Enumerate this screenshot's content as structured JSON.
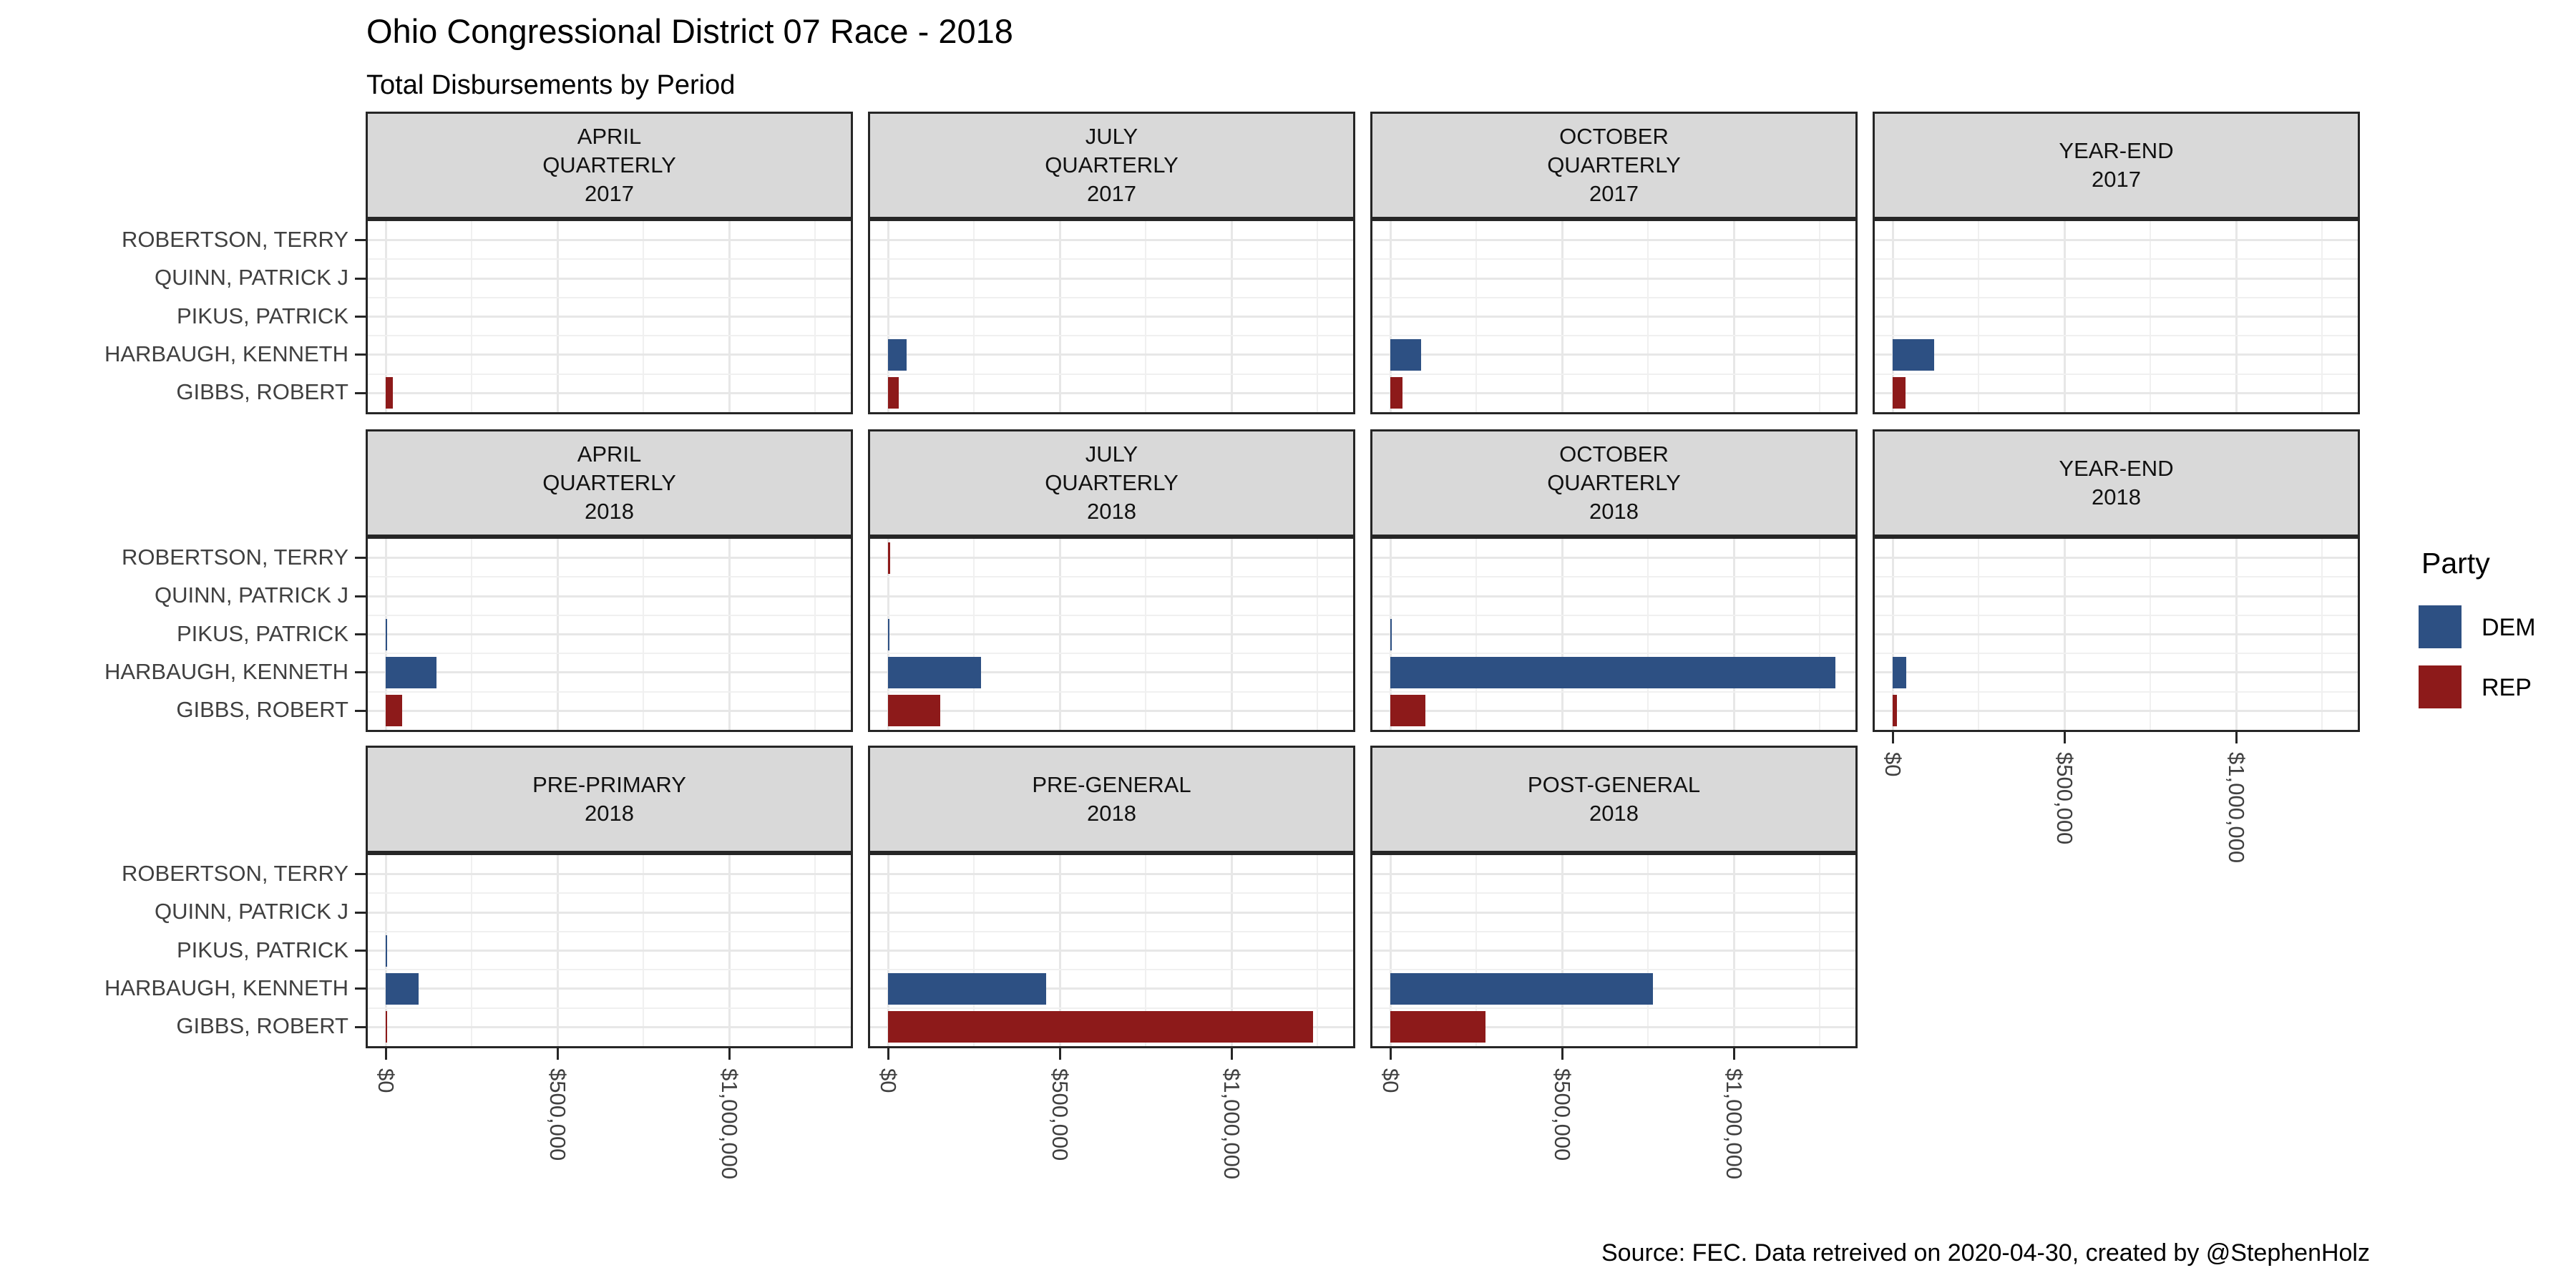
{
  "title": "Ohio Congressional District 07 Race - 2018",
  "subtitle": "Total Disbursements by Period",
  "caption": "Source: FEC. Data retreived on 2020-04-30, created by @StephenHolz",
  "legend": {
    "title": "Party",
    "items": [
      {
        "label": "DEM",
        "color": "#2d5083"
      },
      {
        "label": "REP",
        "color": "#8d1a1a"
      }
    ]
  },
  "colors": {
    "dem": "#2d5083",
    "rep": "#8d1a1a",
    "strip_background": "#d9d9d9",
    "panel_border": "#262626",
    "grid_major": "#e7e7e7",
    "grid_minor": "#f0f0f0",
    "axis_text": "#404040"
  },
  "chart_data": {
    "type": "bar",
    "orientation": "horizontal",
    "title": "Ohio Congressional District 07 Race - 2018",
    "subtitle": "Total Disbursements by Period",
    "xlabel": "",
    "ylabel": "",
    "xlim": [
      0,
      1360000
    ],
    "x_tick_labels": [
      "$0",
      "$500,000",
      "$1,000,000"
    ],
    "x_tick_values": [
      0,
      500000,
      1000000
    ],
    "x_minor_tick_values": [
      250000,
      750000,
      1250000
    ],
    "grid": "on",
    "legend_position": "right",
    "candidates": [
      "ROBERTSON, TERRY",
      "QUINN, PATRICK J",
      "PIKUS, PATRICK",
      "HARBAUGH, KENNETH",
      "GIBBS, ROBERT"
    ],
    "facets": [
      {
        "row": 0,
        "col": 0,
        "label_lines": [
          "APRIL",
          "QUARTERLY",
          "2017"
        ],
        "show_x_axis": false,
        "bars": [
          {
            "candidate": "GIBBS, ROBERT",
            "party": "REP",
            "value": 21000
          }
        ]
      },
      {
        "row": 0,
        "col": 1,
        "label_lines": [
          "JULY",
          "QUARTERLY",
          "2017"
        ],
        "show_x_axis": false,
        "bars": [
          {
            "candidate": "HARBAUGH, KENNETH",
            "party": "DEM",
            "value": 55000
          },
          {
            "candidate": "GIBBS, ROBERT",
            "party": "REP",
            "value": 31000
          }
        ]
      },
      {
        "row": 0,
        "col": 2,
        "label_lines": [
          "OCTOBER",
          "QUARTERLY",
          "2017"
        ],
        "show_x_axis": false,
        "bars": [
          {
            "candidate": "HARBAUGH, KENNETH",
            "party": "DEM",
            "value": 90000
          },
          {
            "candidate": "GIBBS, ROBERT",
            "party": "REP",
            "value": 35000
          }
        ]
      },
      {
        "row": 0,
        "col": 3,
        "label_lines": [
          "YEAR-END",
          "2017"
        ],
        "show_x_axis": false,
        "bars": [
          {
            "candidate": "HARBAUGH, KENNETH",
            "party": "DEM",
            "value": 120000
          },
          {
            "candidate": "GIBBS, ROBERT",
            "party": "REP",
            "value": 38000
          }
        ]
      },
      {
        "row": 1,
        "col": 0,
        "label_lines": [
          "APRIL",
          "QUARTERLY",
          "2018"
        ],
        "show_x_axis": false,
        "bars": [
          {
            "candidate": "PIKUS, PATRICK",
            "party": "DEM",
            "value": 3000
          },
          {
            "candidate": "HARBAUGH, KENNETH",
            "party": "DEM",
            "value": 148000
          },
          {
            "candidate": "GIBBS, ROBERT",
            "party": "REP",
            "value": 48000
          }
        ]
      },
      {
        "row": 1,
        "col": 1,
        "label_lines": [
          "JULY",
          "QUARTERLY",
          "2018"
        ],
        "show_x_axis": false,
        "bars": [
          {
            "candidate": "ROBERTSON, TERRY",
            "party": "REP",
            "value": 7000
          },
          {
            "candidate": "PIKUS, PATRICK",
            "party": "DEM",
            "value": 4000
          },
          {
            "candidate": "HARBAUGH, KENNETH",
            "party": "DEM",
            "value": 270000
          },
          {
            "candidate": "GIBBS, ROBERT",
            "party": "REP",
            "value": 152000
          }
        ]
      },
      {
        "row": 1,
        "col": 2,
        "label_lines": [
          "OCTOBER",
          "QUARTERLY",
          "2018"
        ],
        "show_x_axis": false,
        "bars": [
          {
            "candidate": "PIKUS, PATRICK",
            "party": "DEM",
            "value": 3000
          },
          {
            "candidate": "HARBAUGH, KENNETH",
            "party": "DEM",
            "value": 1295000
          },
          {
            "candidate": "GIBBS, ROBERT",
            "party": "REP",
            "value": 103000
          }
        ]
      },
      {
        "row": 1,
        "col": 3,
        "label_lines": [
          "YEAR-END",
          "2018"
        ],
        "show_x_axis": true,
        "bars": [
          {
            "candidate": "HARBAUGH, KENNETH",
            "party": "DEM",
            "value": 40000
          },
          {
            "candidate": "GIBBS, ROBERT",
            "party": "REP",
            "value": 12000
          }
        ]
      },
      {
        "row": 2,
        "col": 0,
        "label_lines": [
          "PRE-PRIMARY",
          "2018"
        ],
        "show_x_axis": true,
        "bars": [
          {
            "candidate": "PIKUS, PATRICK",
            "party": "DEM",
            "value": 3000
          },
          {
            "candidate": "HARBAUGH, KENNETH",
            "party": "DEM",
            "value": 95000
          },
          {
            "candidate": "GIBBS, ROBERT",
            "party": "REP",
            "value": 4000
          }
        ]
      },
      {
        "row": 2,
        "col": 1,
        "label_lines": [
          "PRE-GENERAL",
          "2018"
        ],
        "show_x_axis": true,
        "bars": [
          {
            "candidate": "HARBAUGH, KENNETH",
            "party": "DEM",
            "value": 460000
          },
          {
            "candidate": "GIBBS, ROBERT",
            "party": "REP",
            "value": 1238000
          }
        ]
      },
      {
        "row": 2,
        "col": 2,
        "label_lines": [
          "POST-GENERAL",
          "2018"
        ],
        "show_x_axis": true,
        "bars": [
          {
            "candidate": "HARBAUGH, KENNETH",
            "party": "DEM",
            "value": 765000
          },
          {
            "candidate": "GIBBS, ROBERT",
            "party": "REP",
            "value": 278000
          }
        ]
      }
    ]
  }
}
